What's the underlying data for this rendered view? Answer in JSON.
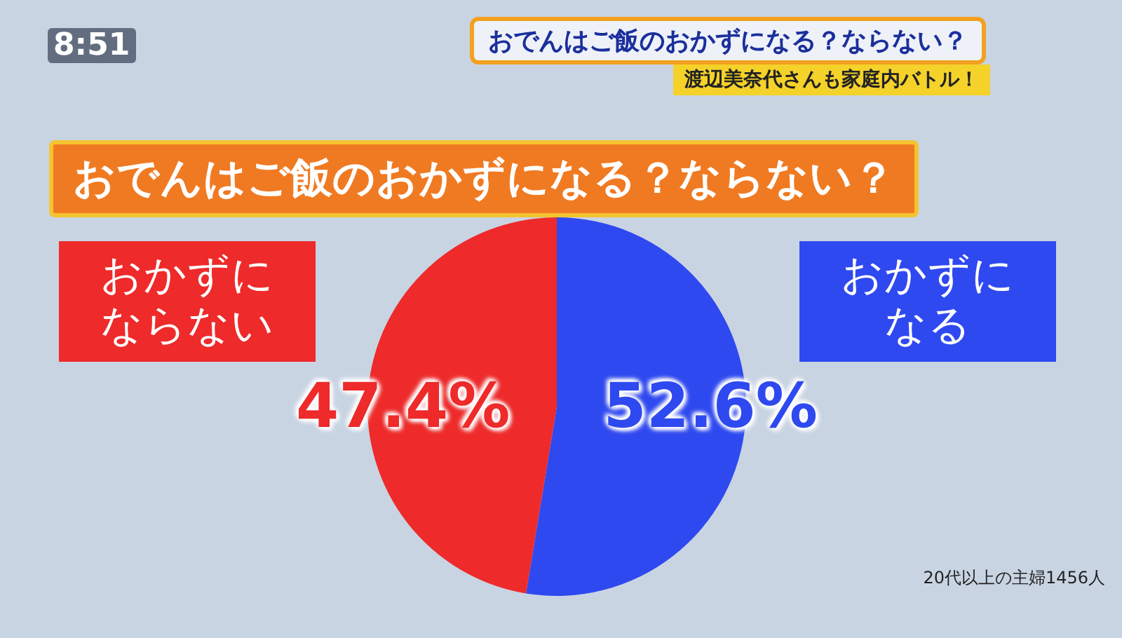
{
  "chart_data": {
    "type": "pie",
    "title": "おでんはご飯のおかずになる？ならない？",
    "subtitle": "渡辺美奈代さんも家庭内バトル！",
    "categories": [
      "おかずになる",
      "おかずにならない"
    ],
    "values": [
      52.6,
      47.4
    ],
    "colors": [
      "#2f49f0",
      "#ee2a2a"
    ],
    "value_labels": [
      "52.6%",
      "47.4%"
    ],
    "legend": false,
    "annotations": [
      "8:51",
      "おでんはご飯のおかずになる？ならない？",
      "20代以上の主婦1456人"
    ]
  }
}
